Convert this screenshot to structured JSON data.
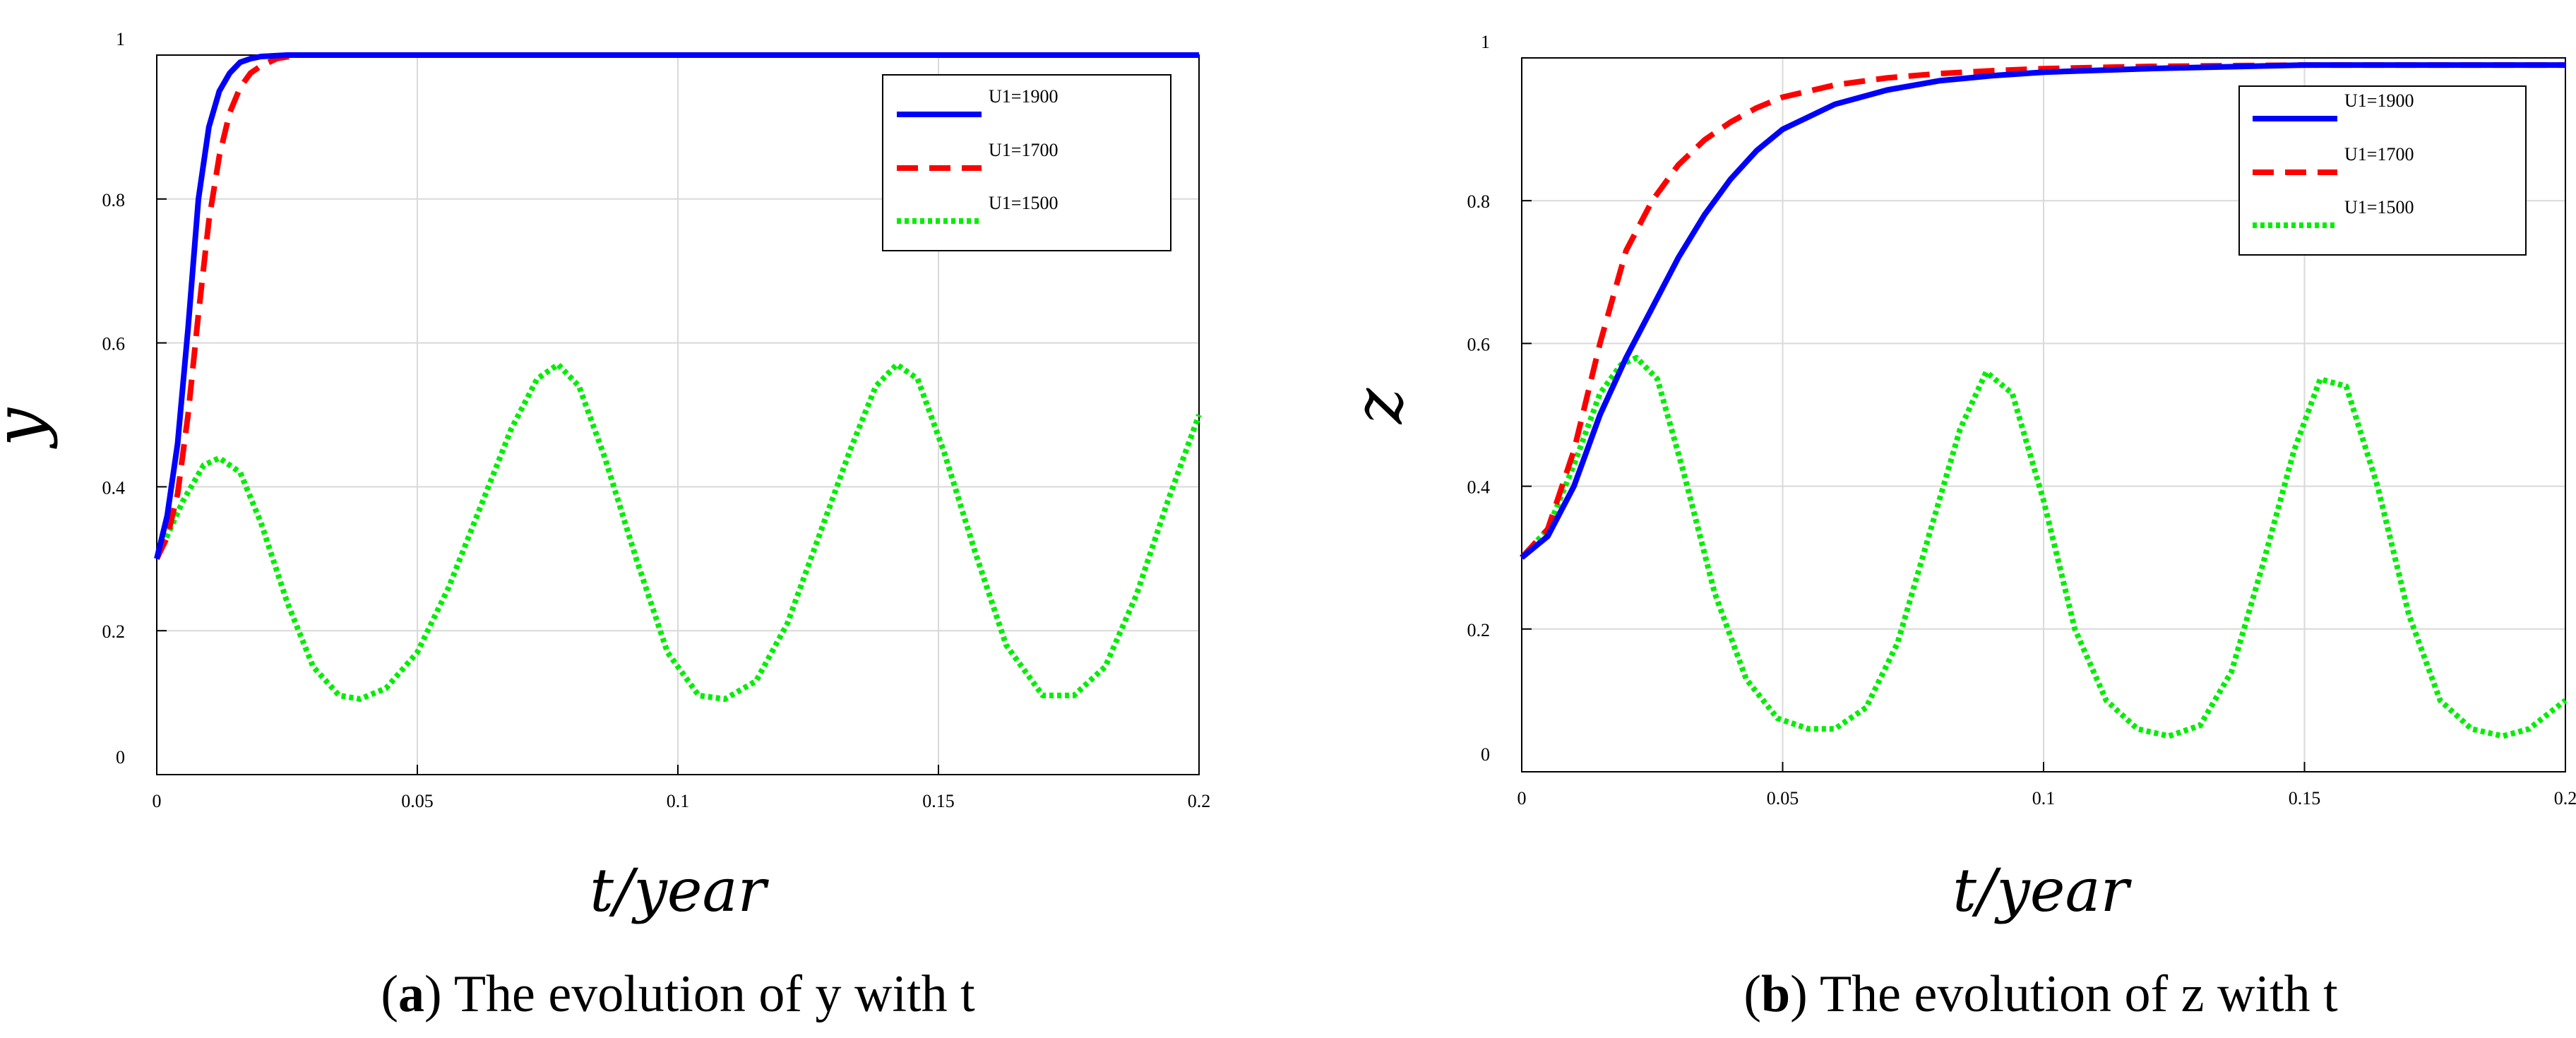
{
  "chart_data": [
    {
      "type": "line",
      "panel_label": "a",
      "caption": "The evolution of y with t",
      "xlabel": "t/year",
      "ylabel": "y",
      "xlim": [
        0,
        0.2
      ],
      "ylim": [
        0,
        1
      ],
      "xticks": [
        0,
        0.05,
        0.1,
        0.15,
        0.2
      ],
      "xtick_labels": [
        "0",
        "0.05",
        "0.1",
        "0.15",
        "0.2"
      ],
      "yticks": [
        0,
        0.2,
        0.4,
        0.6,
        0.8,
        1
      ],
      "ytick_labels": [
        "0",
        "0.2",
        "0.4",
        "0.6",
        "0.8",
        "1"
      ],
      "grid": true,
      "legend_position": "top-right",
      "series": [
        {
          "name": "U1=1900",
          "color": "#0000ff",
          "style": "solid",
          "x": [
            0,
            0.002,
            0.004,
            0.006,
            0.008,
            0.01,
            0.012,
            0.014,
            0.016,
            0.018,
            0.02,
            0.025,
            0.03,
            0.1,
            0.2
          ],
          "y": [
            0.3,
            0.36,
            0.46,
            0.62,
            0.8,
            0.9,
            0.95,
            0.975,
            0.99,
            0.995,
            0.998,
            1.0,
            1.0,
            1.0,
            1.0
          ]
        },
        {
          "name": "U1=1700",
          "color": "#ff0000",
          "style": "dashed",
          "x": [
            0,
            0.002,
            0.004,
            0.006,
            0.008,
            0.01,
            0.012,
            0.014,
            0.016,
            0.018,
            0.02,
            0.023,
            0.027,
            0.1,
            0.2
          ],
          "y": [
            0.3,
            0.33,
            0.39,
            0.5,
            0.64,
            0.77,
            0.86,
            0.92,
            0.955,
            0.975,
            0.985,
            0.995,
            1.0,
            1.0,
            1.0
          ]
        },
        {
          "name": "U1=1500",
          "color": "#00ee00",
          "style": "dotted",
          "x": [
            0,
            0.005,
            0.009,
            0.012,
            0.016,
            0.02,
            0.025,
            0.03,
            0.035,
            0.039,
            0.044,
            0.05,
            0.056,
            0.062,
            0.068,
            0.073,
            0.077,
            0.081,
            0.086,
            0.092,
            0.098,
            0.104,
            0.109,
            0.115,
            0.121,
            0.127,
            0.133,
            0.138,
            0.142,
            0.146,
            0.151,
            0.157,
            0.163,
            0.17,
            0.176,
            0.182,
            0.188,
            0.194,
            0.2
          ],
          "y": [
            0.3,
            0.38,
            0.43,
            0.44,
            0.42,
            0.35,
            0.24,
            0.15,
            0.11,
            0.105,
            0.12,
            0.17,
            0.26,
            0.37,
            0.48,
            0.55,
            0.57,
            0.54,
            0.44,
            0.3,
            0.17,
            0.11,
            0.105,
            0.13,
            0.21,
            0.33,
            0.45,
            0.54,
            0.57,
            0.55,
            0.45,
            0.31,
            0.18,
            0.11,
            0.11,
            0.15,
            0.25,
            0.38,
            0.5
          ]
        }
      ]
    },
    {
      "type": "line",
      "panel_label": "b",
      "caption": "The evolution of z with t",
      "xlabel": "t/year",
      "ylabel": "z",
      "xlim": [
        0,
        0.2
      ],
      "ylim": [
        0,
        1
      ],
      "xticks": [
        0,
        0.05,
        0.1,
        0.15,
        0.2
      ],
      "xtick_labels": [
        "0",
        "0.05",
        "0.1",
        "0.15",
        "0.2"
      ],
      "yticks": [
        0,
        0.2,
        0.4,
        0.6,
        0.8,
        1
      ],
      "ytick_labels": [
        "0",
        "0.2",
        "0.4",
        "0.6",
        "0.8",
        "1"
      ],
      "grid": true,
      "legend_position": "top-right",
      "series": [
        {
          "name": "U1=1900",
          "color": "#0000ff",
          "style": "solid",
          "x": [
            0,
            0.005,
            0.01,
            0.015,
            0.02,
            0.025,
            0.03,
            0.035,
            0.04,
            0.045,
            0.05,
            0.06,
            0.07,
            0.08,
            0.09,
            0.1,
            0.12,
            0.15,
            0.2
          ],
          "y": [
            0.3,
            0.33,
            0.4,
            0.5,
            0.58,
            0.65,
            0.72,
            0.78,
            0.83,
            0.87,
            0.9,
            0.935,
            0.955,
            0.968,
            0.975,
            0.98,
            0.985,
            0.99,
            0.99
          ],
          "annotate": false
        },
        {
          "name": "U1=1700",
          "color": "#ff0000",
          "style": "dashed",
          "x": [
            0,
            0.005,
            0.01,
            0.015,
            0.02,
            0.025,
            0.03,
            0.035,
            0.04,
            0.045,
            0.05,
            0.06,
            0.07,
            0.08,
            0.09,
            0.1,
            0.12,
            0.15,
            0.2
          ],
          "y": [
            0.3,
            0.34,
            0.45,
            0.6,
            0.73,
            0.8,
            0.85,
            0.885,
            0.91,
            0.93,
            0.945,
            0.962,
            0.972,
            0.978,
            0.982,
            0.985,
            0.988,
            0.99,
            0.99
          ]
        },
        {
          "name": "U1=1500",
          "color": "#00ee00",
          "style": "dotted",
          "x": [
            0,
            0.005,
            0.01,
            0.015,
            0.019,
            0.022,
            0.026,
            0.031,
            0.037,
            0.043,
            0.049,
            0.055,
            0.06,
            0.066,
            0.072,
            0.078,
            0.084,
            0.089,
            0.094,
            0.1,
            0.106,
            0.112,
            0.118,
            0.124,
            0.13,
            0.136,
            0.142,
            0.148,
            0.153,
            0.158,
            0.164,
            0.17,
            0.176,
            0.182,
            0.188,
            0.193,
            0.2
          ],
          "y": [
            0.3,
            0.34,
            0.43,
            0.53,
            0.57,
            0.58,
            0.55,
            0.42,
            0.25,
            0.13,
            0.075,
            0.06,
            0.06,
            0.09,
            0.18,
            0.33,
            0.48,
            0.56,
            0.53,
            0.38,
            0.2,
            0.1,
            0.06,
            0.05,
            0.065,
            0.14,
            0.29,
            0.45,
            0.55,
            0.54,
            0.4,
            0.22,
            0.1,
            0.06,
            0.05,
            0.06,
            0.1
          ]
        }
      ]
    }
  ]
}
